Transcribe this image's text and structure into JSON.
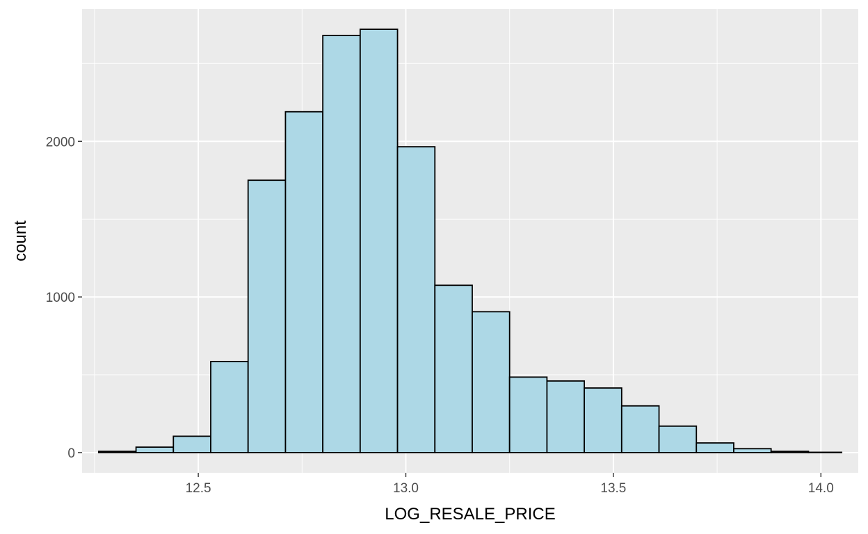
{
  "chart_data": {
    "type": "bar",
    "histogram": true,
    "xlabel": "LOG_RESALE_PRICE",
    "ylabel": "count",
    "xlim": [
      12.22,
      14.09
    ],
    "ylim": [
      -130,
      2850
    ],
    "x_ticks": [
      12.5,
      13.0,
      13.5,
      14.0
    ],
    "x_tick_labels": [
      "12.5",
      "13.0",
      "13.5",
      "14.0"
    ],
    "y_ticks": [
      0,
      1000,
      2000
    ],
    "y_tick_labels": [
      "0",
      "1000",
      "2000"
    ],
    "x_minor_ticks": [
      12.25,
      12.75,
      13.25,
      13.75
    ],
    "y_minor_ticks": [
      500,
      1500,
      2500
    ],
    "grid": true,
    "legend": "none",
    "colors": {
      "panel_background": "#ebebeb",
      "grid_line": "#ffffff",
      "bar_fill": "#add8e6",
      "bar_outline": "#000000"
    },
    "bins": [
      {
        "x0": 12.26,
        "x1": 12.35,
        "count": 8
      },
      {
        "x0": 12.35,
        "x1": 12.44,
        "count": 35
      },
      {
        "x0": 12.44,
        "x1": 12.53,
        "count": 105
      },
      {
        "x0": 12.53,
        "x1": 12.62,
        "count": 585
      },
      {
        "x0": 12.62,
        "x1": 12.71,
        "count": 1750
      },
      {
        "x0": 12.71,
        "x1": 12.8,
        "count": 2190
      },
      {
        "x0": 12.8,
        "x1": 12.89,
        "count": 2680
      },
      {
        "x0": 12.89,
        "x1": 12.98,
        "count": 2720
      },
      {
        "x0": 12.98,
        "x1": 13.07,
        "count": 1965
      },
      {
        "x0": 13.07,
        "x1": 13.16,
        "count": 1075
      },
      {
        "x0": 13.16,
        "x1": 13.25,
        "count": 905
      },
      {
        "x0": 13.25,
        "x1": 13.34,
        "count": 485
      },
      {
        "x0": 13.34,
        "x1": 13.43,
        "count": 460
      },
      {
        "x0": 13.43,
        "x1": 13.52,
        "count": 415
      },
      {
        "x0": 13.52,
        "x1": 13.61,
        "count": 300
      },
      {
        "x0": 13.61,
        "x1": 13.7,
        "count": 170
      },
      {
        "x0": 13.7,
        "x1": 13.79,
        "count": 62
      },
      {
        "x0": 13.79,
        "x1": 13.88,
        "count": 25
      },
      {
        "x0": 13.88,
        "x1": 13.97,
        "count": 8
      },
      {
        "x0": 13.97,
        "x1": 14.05,
        "count": 2
      }
    ]
  }
}
